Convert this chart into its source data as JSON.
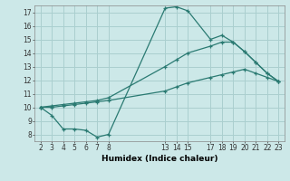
{
  "xlabel": "Humidex (Indice chaleur)",
  "bg_color": "#cce8e8",
  "grid_color": "#aacfcf",
  "line_color": "#2a7a72",
  "ylim": [
    7.5,
    17.5
  ],
  "xlim": [
    1.5,
    23.5
  ],
  "yticks": [
    8,
    9,
    10,
    11,
    12,
    13,
    14,
    15,
    16,
    17
  ],
  "xticks": [
    2,
    3,
    4,
    5,
    6,
    7,
    8,
    13,
    14,
    15,
    17,
    18,
    19,
    20,
    21,
    22,
    23
  ],
  "line1": [
    [
      2,
      10
    ],
    [
      3,
      10.0
    ],
    [
      4,
      10.1
    ],
    [
      5,
      10.2
    ],
    [
      6,
      10.3
    ],
    [
      7,
      10.4
    ],
    [
      8,
      10.5
    ],
    [
      13,
      11.2
    ],
    [
      14,
      11.5
    ],
    [
      15,
      11.8
    ],
    [
      17,
      12.2
    ],
    [
      18,
      12.4
    ],
    [
      19,
      12.6
    ],
    [
      20,
      12.8
    ],
    [
      21,
      12.5
    ],
    [
      22,
      12.2
    ],
    [
      23,
      11.9
    ]
  ],
  "line2": [
    [
      2,
      10
    ],
    [
      3,
      9.4
    ],
    [
      4,
      8.4
    ],
    [
      5,
      8.4
    ],
    [
      6,
      8.3
    ],
    [
      7,
      7.8
    ],
    [
      8,
      8.0
    ],
    [
      13,
      17.3
    ],
    [
      14,
      17.4
    ],
    [
      15,
      17.1
    ],
    [
      17,
      15.0
    ],
    [
      18,
      15.3
    ],
    [
      19,
      14.8
    ],
    [
      20,
      14.1
    ],
    [
      21,
      13.3
    ],
    [
      22,
      12.5
    ],
    [
      23,
      11.9
    ]
  ],
  "line3": [
    [
      2,
      10
    ],
    [
      3,
      10.1
    ],
    [
      4,
      10.2
    ],
    [
      5,
      10.3
    ],
    [
      6,
      10.4
    ],
    [
      7,
      10.5
    ],
    [
      8,
      10.7
    ],
    [
      13,
      13.0
    ],
    [
      14,
      13.5
    ],
    [
      15,
      14.0
    ],
    [
      17,
      14.5
    ],
    [
      18,
      14.8
    ],
    [
      19,
      14.8
    ],
    [
      20,
      14.1
    ],
    [
      21,
      13.3
    ],
    [
      22,
      12.5
    ],
    [
      23,
      11.9
    ]
  ]
}
